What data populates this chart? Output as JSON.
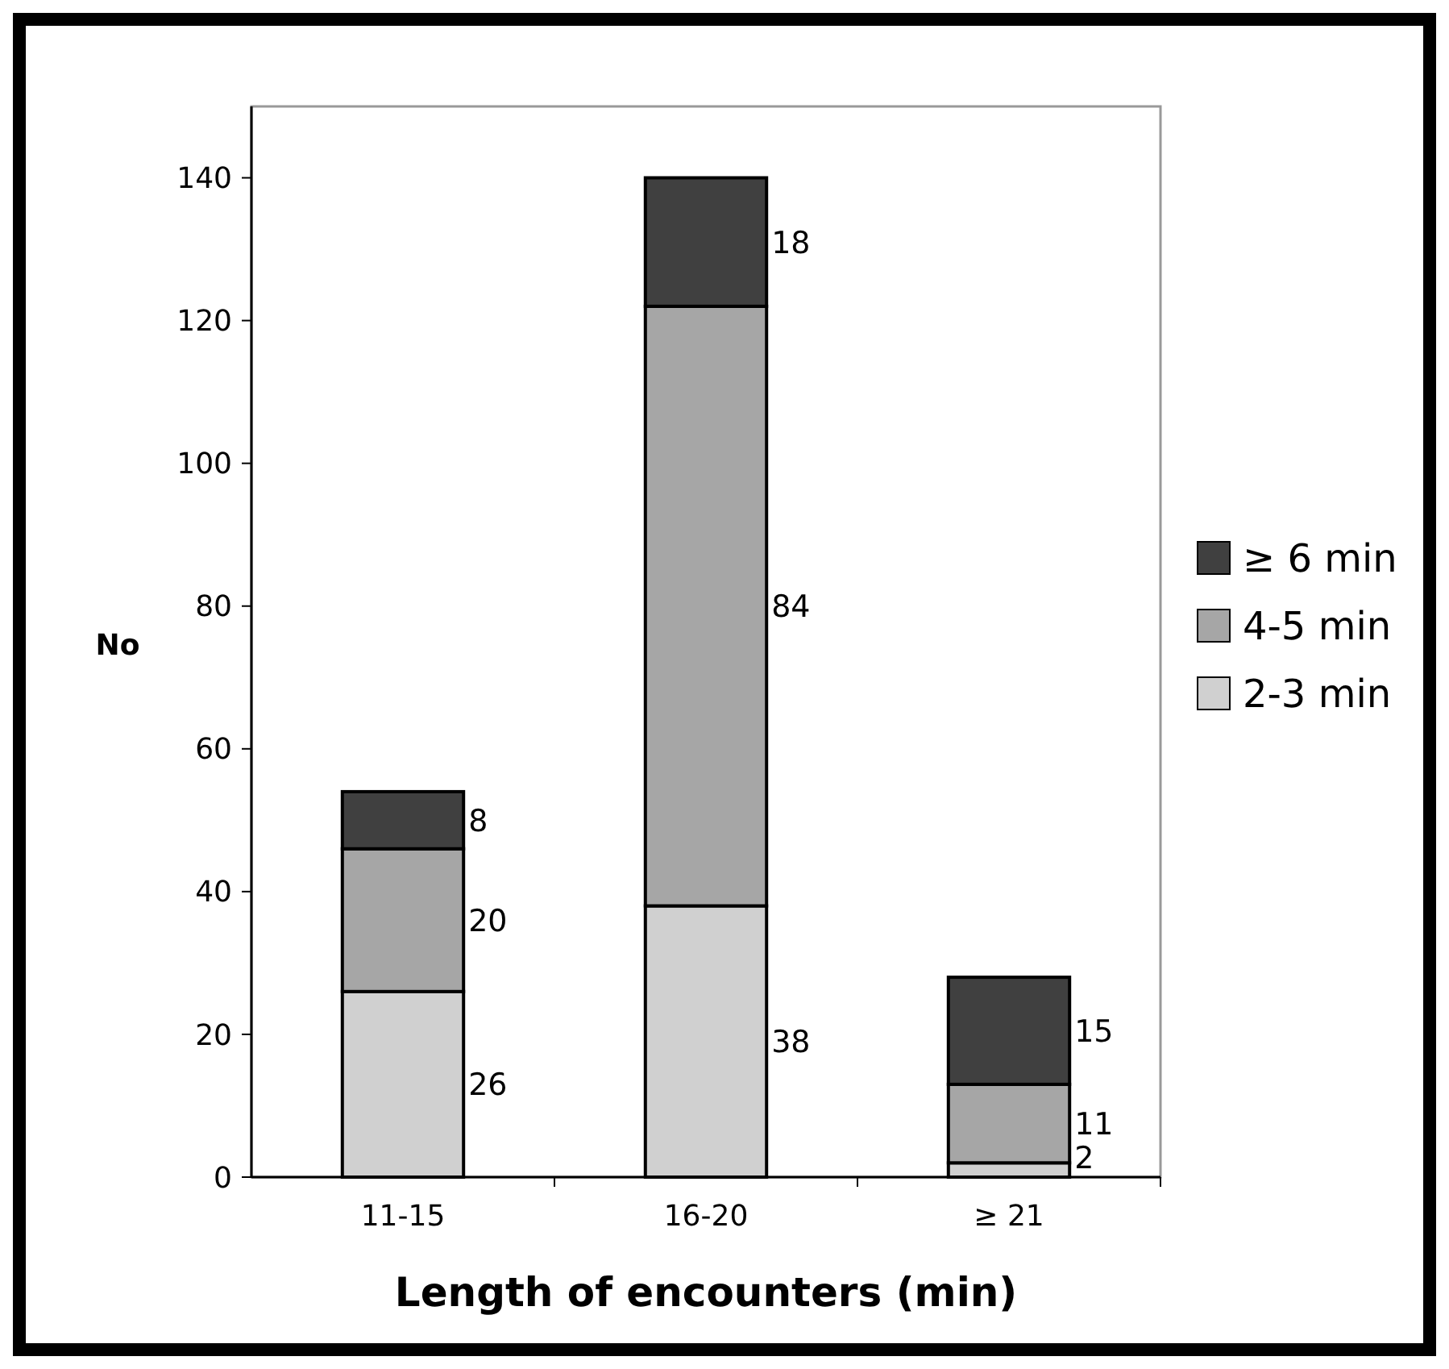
{
  "chart_data": {
    "type": "bar",
    "stacked": true,
    "xlabel": "Length of encounters (min)",
    "ylabel": "No",
    "categories": [
      "11-15",
      "16-20",
      "≥ 21"
    ],
    "series": [
      {
        "name": "2-3 min",
        "color": "#d0d0d0",
        "values": [
          26,
          38,
          2
        ]
      },
      {
        "name": "4-5 min",
        "color": "#a6a6a6",
        "values": [
          20,
          84,
          11
        ]
      },
      {
        "name": "≥ 6 min",
        "color": "#404040",
        "values": [
          8,
          18,
          15
        ]
      }
    ],
    "ylim": [
      0,
      150
    ],
    "yticks": [
      0,
      20,
      40,
      60,
      80,
      100,
      120,
      140
    ],
    "grid": false,
    "legend": "right",
    "data_labels": true
  }
}
